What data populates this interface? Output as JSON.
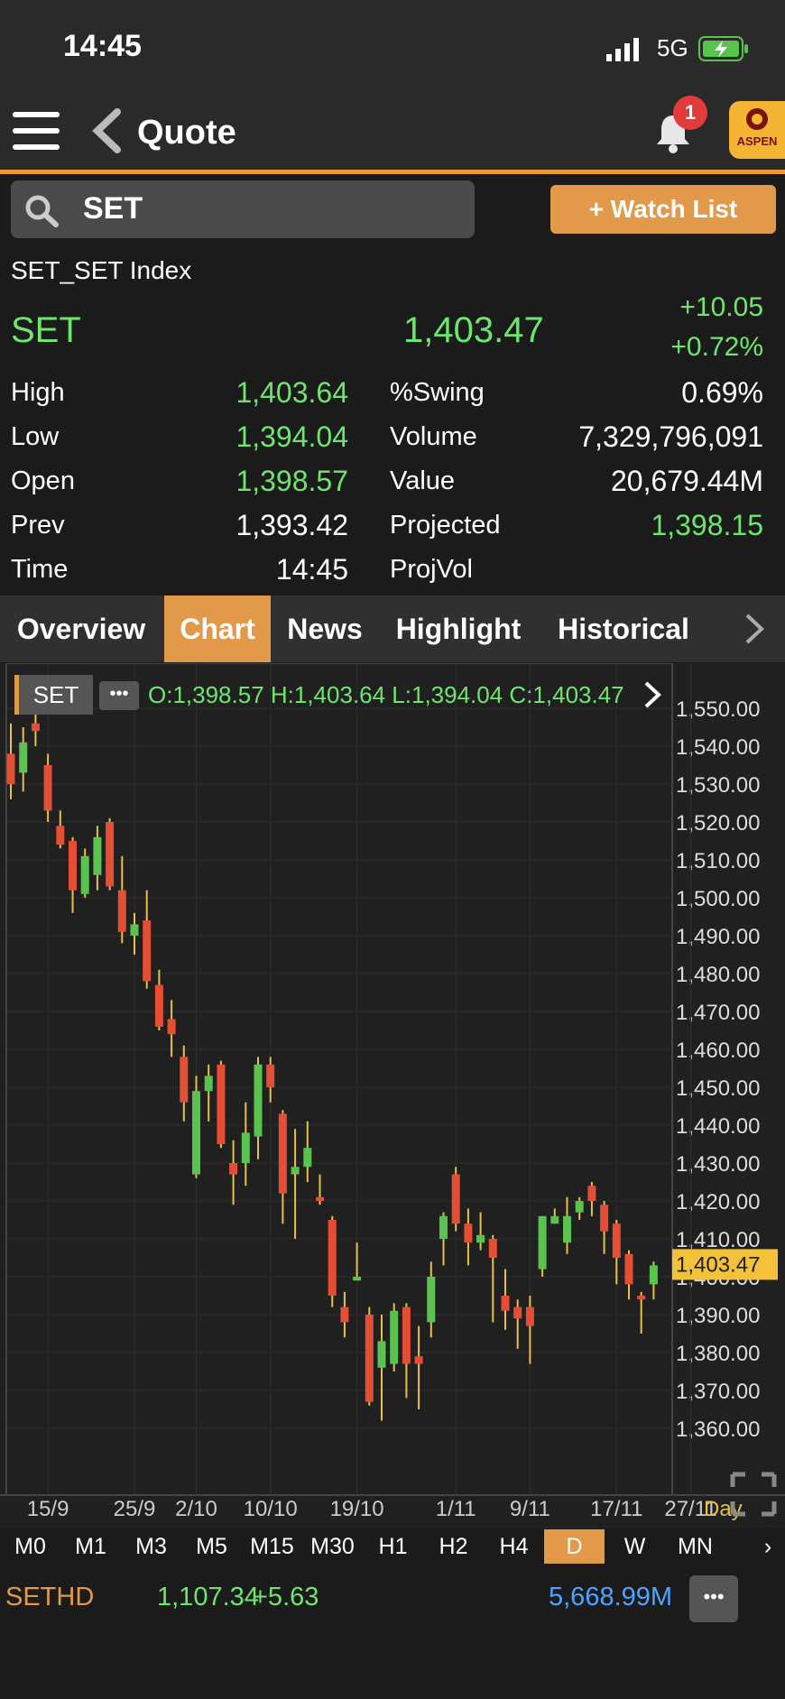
{
  "status_bar": {
    "time": "14:45",
    "network": "5G"
  },
  "header": {
    "title": "Quote",
    "notification_count": "1",
    "logo_text": "ASPEN"
  },
  "search": {
    "value": "SET"
  },
  "watch_list_label": "+ Watch List",
  "quote": {
    "index_name": "SET_SET Index",
    "symbol": "SET",
    "last": "1,403.47",
    "change": "+10.05",
    "change_percent": "+0.72%"
  },
  "stats_left": [
    {
      "label": "High",
      "value": "1,403.64",
      "color": "#6ee66e"
    },
    {
      "label": "Low",
      "value": "1,394.04",
      "color": "#6ee66e"
    },
    {
      "label": "Open",
      "value": "1,398.57",
      "color": "#6ee66e"
    },
    {
      "label": "Prev",
      "value": "1,393.42",
      "color": "#ffffff"
    },
    {
      "label": "Time",
      "value": "14:45",
      "color": "#ffffff"
    }
  ],
  "stats_right": [
    {
      "label": "%Swing",
      "value": "0.69%",
      "color": "#ffffff"
    },
    {
      "label": "Volume",
      "value": "7,329,796,091",
      "color": "#ffffff"
    },
    {
      "label": "Value",
      "value": "20,679.44M",
      "color": "#ffffff"
    },
    {
      "label": "Projected",
      "value": "1,398.15",
      "color": "#6ee66e"
    },
    {
      "label": "ProjVol",
      "value": "",
      "color": "#ffffff"
    }
  ],
  "tabs": [
    "Overview",
    "Chart",
    "News",
    "Highlight",
    "Historical"
  ],
  "active_tab": "Chart",
  "chart_header": {
    "symbol": "SET",
    "ohlc": "O:1,398.57  H:1,403.64  L:1,394.04  C:1,403.47"
  },
  "chart_data": {
    "type": "candlestick",
    "y_ticks": [
      "1,550.00",
      "1,540.00",
      "1,530.00",
      "1,520.00",
      "1,510.00",
      "1,500.00",
      "1,490.00",
      "1,480.00",
      "1,470.00",
      "1,460.00",
      "1,450.00",
      "1,440.00",
      "1,430.00",
      "1,420.00",
      "1,410.00",
      "1,400.00",
      "1,390.00",
      "1,380.00",
      "1,370.00",
      "1,360.00"
    ],
    "y_range": [
      1360,
      1550
    ],
    "last_price_label": "1,403.47",
    "last_price": 1403.47,
    "x_ticks": [
      "15/9",
      "25/9",
      "2/10",
      "10/10",
      "19/10",
      "1/11",
      "9/11",
      "17/11",
      "27/11"
    ],
    "x_tick_index": [
      3,
      10,
      15,
      21,
      28,
      36,
      42,
      49,
      55
    ],
    "period_label": "Day",
    "candles": [
      {
        "o": 1538,
        "h": 1546,
        "l": 1526,
        "c": 1530
      },
      {
        "o": 1533,
        "h": 1545,
        "l": 1528,
        "c": 1541
      },
      {
        "o": 1546,
        "h": 1550,
        "l": 1540,
        "c": 1544
      },
      {
        "o": 1535,
        "h": 1538,
        "l": 1520,
        "c": 1523
      },
      {
        "o": 1519,
        "h": 1523,
        "l": 1513,
        "c": 1514
      },
      {
        "o": 1515,
        "h": 1516,
        "l": 1496,
        "c": 1502
      },
      {
        "o": 1501,
        "h": 1513,
        "l": 1500,
        "c": 1511
      },
      {
        "o": 1506,
        "h": 1519,
        "l": 1502,
        "c": 1516
      },
      {
        "o": 1520,
        "h": 1521,
        "l": 1502,
        "c": 1503
      },
      {
        "o": 1502,
        "h": 1511,
        "l": 1488,
        "c": 1491
      },
      {
        "o": 1490,
        "h": 1496,
        "l": 1485,
        "c": 1493
      },
      {
        "o": 1494,
        "h": 1502,
        "l": 1476,
        "c": 1478
      },
      {
        "o": 1477,
        "h": 1481,
        "l": 1465,
        "c": 1466
      },
      {
        "o": 1468,
        "h": 1473,
        "l": 1458,
        "c": 1464
      },
      {
        "o": 1458,
        "h": 1461,
        "l": 1441,
        "c": 1446
      },
      {
        "o": 1427,
        "h": 1453,
        "l": 1426,
        "c": 1449
      },
      {
        "o": 1449,
        "h": 1456,
        "l": 1441,
        "c": 1453
      },
      {
        "o": 1456,
        "h": 1457,
        "l": 1434,
        "c": 1435
      },
      {
        "o": 1430,
        "h": 1436,
        "l": 1419,
        "c": 1427
      },
      {
        "o": 1430,
        "h": 1446,
        "l": 1424,
        "c": 1438
      },
      {
        "o": 1437,
        "h": 1458,
        "l": 1431,
        "c": 1456
      },
      {
        "o": 1456,
        "h": 1458,
        "l": 1446,
        "c": 1450
      },
      {
        "o": 1443,
        "h": 1444,
        "l": 1414,
        "c": 1422
      },
      {
        "o": 1427,
        "h": 1439,
        "l": 1410,
        "c": 1429
      },
      {
        "o": 1429,
        "h": 1441,
        "l": 1425,
        "c": 1434
      },
      {
        "o": 1421,
        "h": 1427,
        "l": 1419,
        "c": 1420
      },
      {
        "o": 1415,
        "h": 1416,
        "l": 1392,
        "c": 1395
      },
      {
        "o": 1392,
        "h": 1396,
        "l": 1384,
        "c": 1388
      },
      {
        "o": 1399,
        "h": 1409,
        "l": 1399,
        "c": 1400
      },
      {
        "o": 1390,
        "h": 1392,
        "l": 1366,
        "c": 1367
      },
      {
        "o": 1376,
        "h": 1390,
        "l": 1362,
        "c": 1383
      },
      {
        "o": 1377,
        "h": 1393,
        "l": 1375,
        "c": 1391
      },
      {
        "o": 1392,
        "h": 1393,
        "l": 1368,
        "c": 1377
      },
      {
        "o": 1379,
        "h": 1387,
        "l": 1365,
        "c": 1377
      },
      {
        "o": 1388,
        "h": 1404,
        "l": 1384,
        "c": 1400
      },
      {
        "o": 1410,
        "h": 1417,
        "l": 1403,
        "c": 1416
      },
      {
        "o": 1427,
        "h": 1429,
        "l": 1412,
        "c": 1414
      },
      {
        "o": 1414,
        "h": 1418,
        "l": 1403,
        "c": 1409
      },
      {
        "o": 1409,
        "h": 1417,
        "l": 1407,
        "c": 1411
      },
      {
        "o": 1410,
        "h": 1411,
        "l": 1388,
        "c": 1405
      },
      {
        "o": 1395,
        "h": 1402,
        "l": 1386,
        "c": 1391
      },
      {
        "o": 1392,
        "h": 1394,
        "l": 1381,
        "c": 1389
      },
      {
        "o": 1392,
        "h": 1395,
        "l": 1377,
        "c": 1387
      },
      {
        "o": 1402,
        "h": 1416,
        "l": 1400,
        "c": 1416
      },
      {
        "o": 1414,
        "h": 1418,
        "l": 1414,
        "c": 1416
      },
      {
        "o": 1409,
        "h": 1421,
        "l": 1406,
        "c": 1416
      },
      {
        "o": 1417,
        "h": 1421,
        "l": 1415,
        "c": 1420
      },
      {
        "o": 1424,
        "h": 1425,
        "l": 1416,
        "c": 1420
      },
      {
        "o": 1419,
        "h": 1420,
        "l": 1406,
        "c": 1412
      },
      {
        "o": 1414,
        "h": 1415,
        "l": 1398,
        "c": 1405
      },
      {
        "o": 1406,
        "h": 1407,
        "l": 1394,
        "c": 1398
      },
      {
        "o": 1395,
        "h": 1396,
        "l": 1385,
        "c": 1394
      },
      {
        "o": 1398,
        "h": 1404,
        "l": 1394,
        "c": 1403
      }
    ],
    "colors": {
      "up": "#5ac24f",
      "down": "#e34e34",
      "wick": "#e6c14a"
    }
  },
  "timeframes": [
    "M0",
    "M1",
    "M3",
    "M5",
    "M15",
    "M30",
    "H1",
    "H2",
    "H4",
    "D",
    "W",
    "MN"
  ],
  "active_timeframe": "D",
  "bottom_row": {
    "symbol": "SETHD",
    "value": "1,107.34",
    "change": "+5.63",
    "volume": "5,668.99M"
  },
  "colors": {
    "accent": "#e3994a",
    "positive": "#6ee66e",
    "background": "#1b1b1b"
  }
}
